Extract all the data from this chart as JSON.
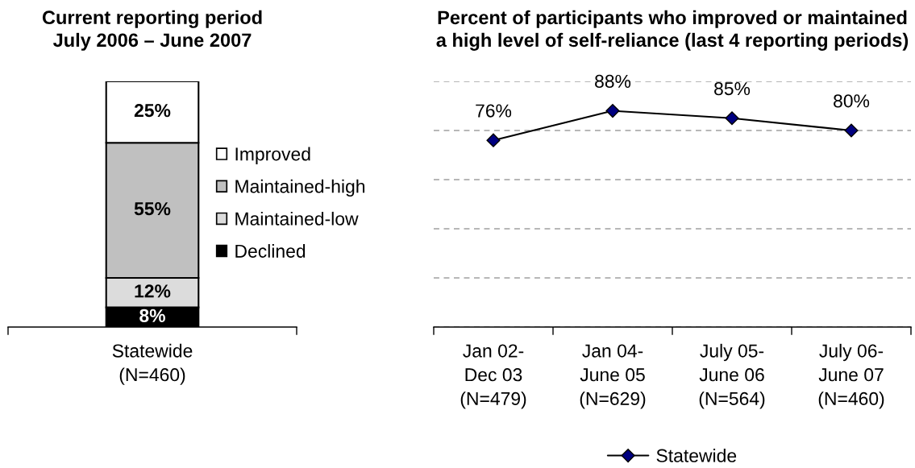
{
  "chart_data": [
    {
      "type": "bar",
      "title": "Current reporting period\nJuly 2006 – June 2007",
      "categories": [
        "Statewide\n(N=460)"
      ],
      "stacked": true,
      "ylim": [
        0,
        100
      ],
      "tick_labels": "x",
      "legend": "right",
      "series": [
        {
          "name": "Declined",
          "color": "#000000",
          "values": [
            8
          ],
          "value_labels": [
            "8%"
          ]
        },
        {
          "name": "Maintained-low",
          "color": "#dcdcdc",
          "values": [
            12
          ],
          "value_labels": [
            "12%"
          ]
        },
        {
          "name": "Maintained-high",
          "color": "#c0c0c0",
          "values": [
            55
          ],
          "value_labels": [
            "55%"
          ]
        },
        {
          "name": "Improved",
          "color": "#ffffff",
          "values": [
            25
          ],
          "value_labels": [
            "25%"
          ]
        }
      ]
    },
    {
      "type": "line",
      "title": "Percent of participants who improved or maintained\na high level of self-reliance (last 4 reporting periods)",
      "categories": [
        "Jan 02-\nDec 03\n(N=479)",
        "Jan 04-\nJune 05\n(N=629)",
        "July 05-\nJune 06\n(N=564)",
        "July 06-\nJune 07\n(N=460)"
      ],
      "ylim": [
        0,
        100
      ],
      "yticks": [
        0,
        20,
        40,
        60,
        80,
        100
      ],
      "tick_labels": "x",
      "grid": "y",
      "legend": "bottom",
      "marker": "diamond",
      "line_style": "solid",
      "series": [
        {
          "name": "Statewide",
          "color": "#000080",
          "values": [
            76,
            88,
            85,
            80
          ],
          "value_labels": [
            "76%",
            "88%",
            "85%",
            "80%"
          ]
        }
      ]
    }
  ]
}
